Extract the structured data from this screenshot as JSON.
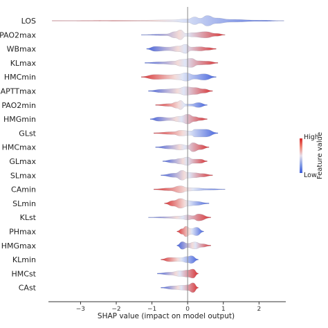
{
  "chart_data": {
    "type": "violin",
    "xlabel": "SHAP value (impact on model output)",
    "xlim": [
      -3.9,
      2.75
    ],
    "xticks": [
      -3,
      -2,
      -1,
      0,
      1,
      2
    ],
    "xtick_labels": [
      "−3",
      "−2",
      "−1",
      "0",
      "1",
      "2"
    ],
    "zero_line": 0,
    "colorbar": {
      "label": "Feature value",
      "high_label": "High",
      "low_label": "Low",
      "high_color": "#d62728",
      "low_color": "#3b5bdb"
    },
    "features": [
      {
        "name": "LOS",
        "min": -3.8,
        "max": 2.7,
        "nodes": [
          [
            -3.8,
            0.2
          ],
          [
            -1.5,
            0.6
          ],
          [
            -0.5,
            1.2
          ],
          [
            0.0,
            2.5
          ],
          [
            0.2,
            5.5
          ],
          [
            0.35,
            3.5
          ],
          [
            0.55,
            7.5
          ],
          [
            0.8,
            4.0
          ],
          [
            1.2,
            2.0
          ],
          [
            2.0,
            0.8
          ],
          [
            2.7,
            0.2
          ]
        ],
        "low_side": "right"
      },
      {
        "name": "PAO2max",
        "min": -1.3,
        "max": 1.05,
        "nodes": [
          [
            -1.3,
            0.3
          ],
          [
            -0.6,
            1.2
          ],
          [
            -0.35,
            4.5
          ],
          [
            -0.2,
            7.0
          ],
          [
            -0.05,
            2.0
          ],
          [
            0.15,
            3.0
          ],
          [
            0.5,
            4.5
          ],
          [
            0.8,
            2.0
          ],
          [
            1.05,
            0.3
          ]
        ],
        "low_side": "left"
      },
      {
        "name": "WBmax",
        "min": -1.15,
        "max": 0.8,
        "nodes": [
          [
            -1.15,
            0.5
          ],
          [
            -0.9,
            3.5
          ],
          [
            -0.55,
            2.5
          ],
          [
            -0.25,
            4.0
          ],
          [
            -0.05,
            6.5
          ],
          [
            0.1,
            2.5
          ],
          [
            0.35,
            3.0
          ],
          [
            0.55,
            2.0
          ],
          [
            0.8,
            0.5
          ]
        ],
        "low_side": "left"
      },
      {
        "name": "KLmax",
        "min": -1.2,
        "max": 0.85,
        "nodes": [
          [
            -1.2,
            0.5
          ],
          [
            -0.75,
            1.5
          ],
          [
            -0.4,
            2.5
          ],
          [
            -0.15,
            5.0
          ],
          [
            0.1,
            6.5
          ],
          [
            0.3,
            3.0
          ],
          [
            0.55,
            2.5
          ],
          [
            0.85,
            0.5
          ]
        ],
        "low_side": "left"
      },
      {
        "name": "HMCmin",
        "min": -1.3,
        "max": 0.8,
        "nodes": [
          [
            -1.3,
            0.5
          ],
          [
            -0.9,
            3.5
          ],
          [
            -0.5,
            3.0
          ],
          [
            -0.25,
            4.0
          ],
          [
            -0.05,
            6.0
          ],
          [
            0.2,
            3.0
          ],
          [
            0.45,
            4.5
          ],
          [
            0.8,
            0.5
          ]
        ],
        "low_side": "right"
      },
      {
        "name": "APTTmax",
        "min": -1.1,
        "max": 0.7,
        "nodes": [
          [
            -1.1,
            0.5
          ],
          [
            -0.7,
            2.5
          ],
          [
            -0.3,
            3.5
          ],
          [
            -0.05,
            6.0
          ],
          [
            0.2,
            5.0
          ],
          [
            0.45,
            3.0
          ],
          [
            0.7,
            0.5
          ]
        ],
        "low_side": "left"
      },
      {
        "name": "PAO2min",
        "min": -0.9,
        "max": 0.55,
        "nodes": [
          [
            -0.9,
            0.5
          ],
          [
            -0.5,
            2.0
          ],
          [
            -0.3,
            4.5
          ],
          [
            -0.2,
            6.5
          ],
          [
            -0.05,
            1.5
          ],
          [
            0.1,
            1.5
          ],
          [
            0.3,
            3.5
          ],
          [
            0.55,
            0.5
          ]
        ],
        "low_side": "right"
      },
      {
        "name": "HMGmin",
        "min": -1.05,
        "max": 0.55,
        "nodes": [
          [
            -1.05,
            0.5
          ],
          [
            -0.8,
            3.0
          ],
          [
            -0.5,
            2.0
          ],
          [
            -0.2,
            4.0
          ],
          [
            0.0,
            7.0
          ],
          [
            0.2,
            3.5
          ],
          [
            0.35,
            2.0
          ],
          [
            0.55,
            0.5
          ]
        ],
        "low_side": "left"
      },
      {
        "name": "GLst",
        "min": -0.95,
        "max": 0.85,
        "nodes": [
          [
            -0.95,
            0.5
          ],
          [
            -0.4,
            2.0
          ],
          [
            -0.2,
            4.0
          ],
          [
            0.1,
            3.0
          ],
          [
            0.2,
            5.5
          ],
          [
            0.5,
            5.5
          ],
          [
            0.85,
            0.5
          ]
        ],
        "low_side": "right"
      },
      {
        "name": "HMCmax",
        "min": -0.9,
        "max": 0.6,
        "nodes": [
          [
            -0.9,
            0.5
          ],
          [
            -0.5,
            2.5
          ],
          [
            -0.2,
            4.0
          ],
          [
            0.0,
            2.5
          ],
          [
            0.15,
            6.5
          ],
          [
            0.35,
            3.5
          ],
          [
            0.6,
            0.5
          ]
        ],
        "low_side": "left"
      },
      {
        "name": "GLmax",
        "min": -0.7,
        "max": 0.55,
        "nodes": [
          [
            -0.7,
            0.5
          ],
          [
            -0.4,
            2.5
          ],
          [
            -0.2,
            4.0
          ],
          [
            0.0,
            6.0
          ],
          [
            0.15,
            3.0
          ],
          [
            0.35,
            3.0
          ],
          [
            0.55,
            0.5
          ]
        ],
        "low_side": "left"
      },
      {
        "name": "SLmax",
        "min": -0.75,
        "max": 0.7,
        "nodes": [
          [
            -0.75,
            0.5
          ],
          [
            -0.35,
            3.0
          ],
          [
            -0.15,
            7.0
          ],
          [
            0.0,
            4.0
          ],
          [
            0.2,
            3.5
          ],
          [
            0.4,
            2.5
          ],
          [
            0.7,
            0.5
          ]
        ],
        "low_side": "left"
      },
      {
        "name": "CAmin",
        "min": -0.95,
        "max": 1.05,
        "nodes": [
          [
            -0.95,
            0.5
          ],
          [
            -0.5,
            2.0
          ],
          [
            -0.2,
            5.0
          ],
          [
            0.0,
            2.5
          ],
          [
            0.2,
            2.0
          ],
          [
            0.6,
            1.0
          ],
          [
            1.05,
            0.3
          ]
        ],
        "low_side": "right"
      },
      {
        "name": "SLmin",
        "min": -0.65,
        "max": 0.6,
        "nodes": [
          [
            -0.65,
            0.5
          ],
          [
            -0.4,
            4.0
          ],
          [
            -0.2,
            7.0
          ],
          [
            0.0,
            4.0
          ],
          [
            0.2,
            3.0
          ],
          [
            0.6,
            0.5
          ]
        ],
        "low_side": "right"
      },
      {
        "name": "KLst",
        "min": -1.1,
        "max": 0.65,
        "nodes": [
          [
            -1.1,
            0.3
          ],
          [
            -0.6,
            1.0
          ],
          [
            -0.2,
            2.0
          ],
          [
            0.0,
            3.5
          ],
          [
            0.15,
            2.5
          ],
          [
            0.3,
            5.0
          ],
          [
            0.65,
            0.5
          ]
        ],
        "low_side": "left"
      },
      {
        "name": "PHmax",
        "min": -0.3,
        "max": 0.45,
        "nodes": [
          [
            -0.3,
            0.5
          ],
          [
            -0.15,
            4.0
          ],
          [
            -0.05,
            7.5
          ],
          [
            0.1,
            4.0
          ],
          [
            0.25,
            6.0
          ],
          [
            0.45,
            0.5
          ]
        ],
        "low_side": "right"
      },
      {
        "name": "HMGmax",
        "min": -0.3,
        "max": 0.65,
        "nodes": [
          [
            -0.3,
            0.5
          ],
          [
            -0.15,
            5.5
          ],
          [
            0.0,
            3.0
          ],
          [
            0.2,
            5.0
          ],
          [
            0.4,
            2.5
          ],
          [
            0.65,
            0.5
          ]
        ],
        "low_side": "left"
      },
      {
        "name": "KLmin",
        "min": -0.75,
        "max": 0.3,
        "nodes": [
          [
            -0.75,
            0.5
          ],
          [
            -0.5,
            3.0
          ],
          [
            -0.2,
            2.5
          ],
          [
            0.0,
            4.5
          ],
          [
            0.1,
            5.5
          ],
          [
            0.3,
            0.5
          ]
        ],
        "low_side": "right"
      },
      {
        "name": "HMCst",
        "min": -0.85,
        "max": 0.3,
        "nodes": [
          [
            -0.85,
            0.5
          ],
          [
            -0.5,
            2.0
          ],
          [
            -0.2,
            4.0
          ],
          [
            0.0,
            5.0
          ],
          [
            0.15,
            6.5
          ],
          [
            0.3,
            0.5
          ]
        ],
        "low_side": "left"
      },
      {
        "name": "CAst",
        "min": -0.75,
        "max": 0.3,
        "nodes": [
          [
            -0.75,
            0.5
          ],
          [
            -0.4,
            2.5
          ],
          [
            -0.1,
            3.5
          ],
          [
            0.0,
            4.0
          ],
          [
            0.15,
            7.0
          ],
          [
            0.3,
            0.5
          ]
        ],
        "low_side": "left"
      }
    ]
  }
}
